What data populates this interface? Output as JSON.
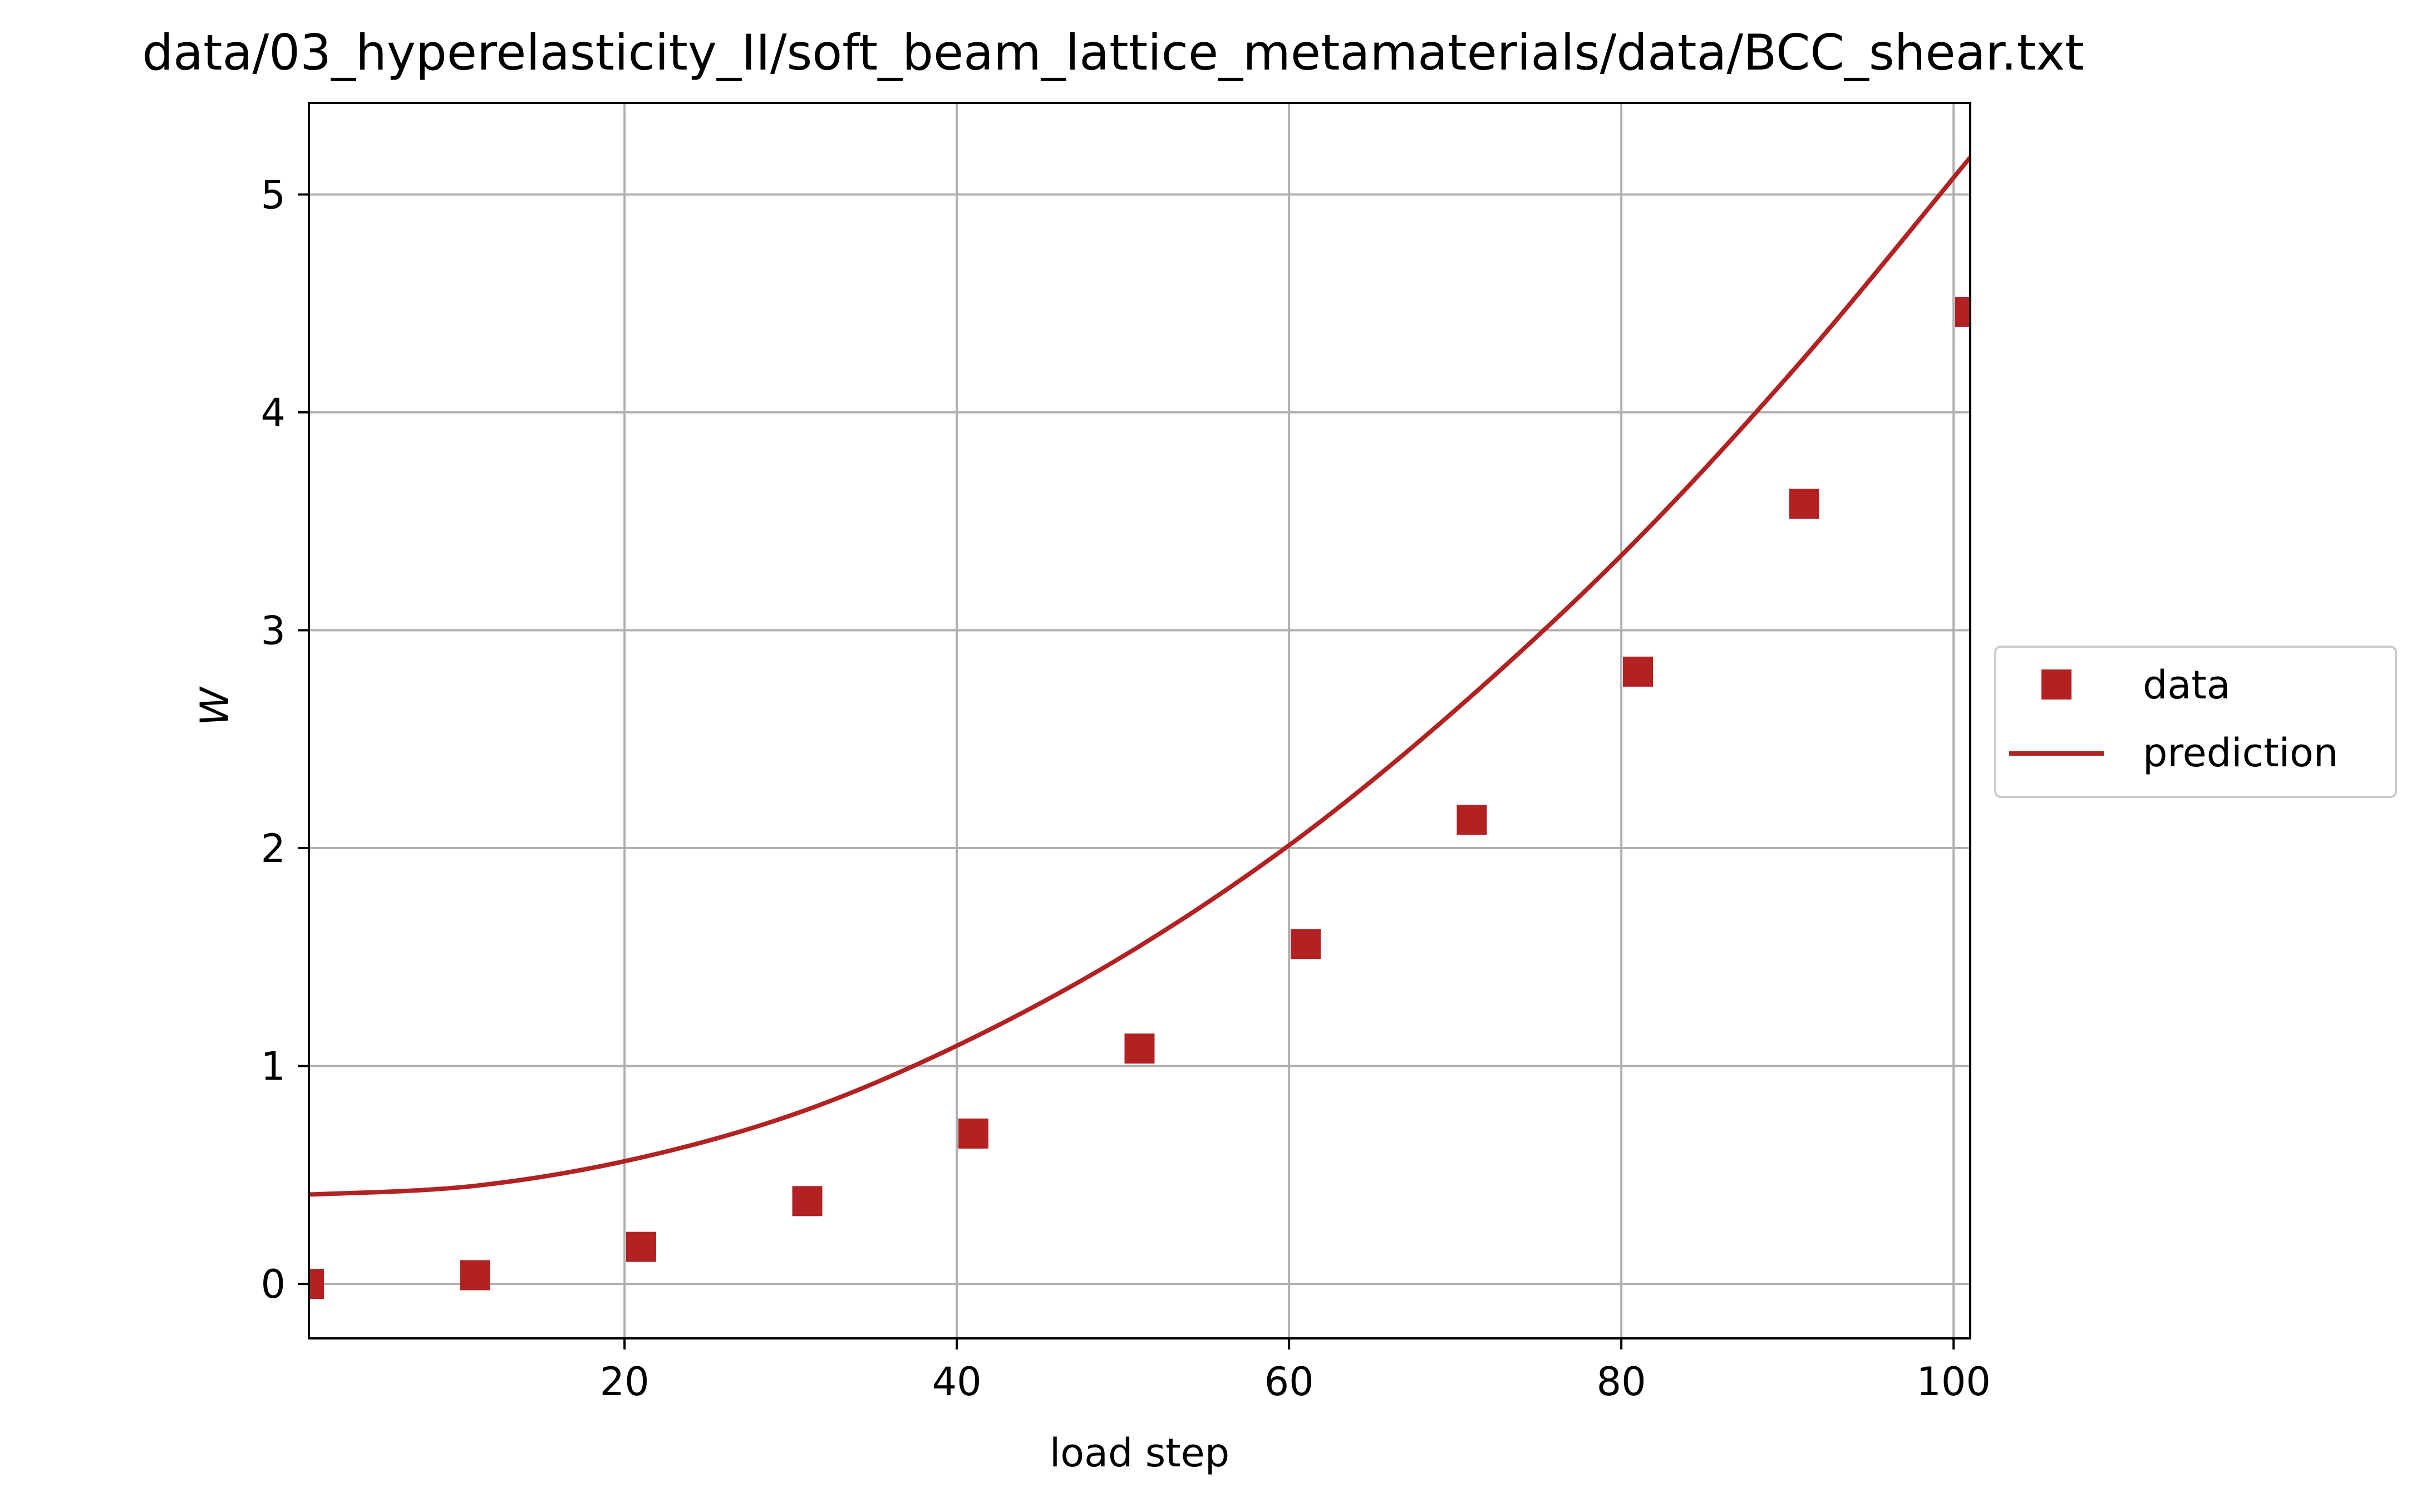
{
  "chart_data": {
    "type": "scatter",
    "title": "data/03_hyperelasticity_II/soft_beam_lattice_metamaterials/data/BCC_shear.txt",
    "xlabel": "load step",
    "ylabel": "W",
    "xlim": [
      1,
      101
    ],
    "ylim": [
      -0.25,
      5.42
    ],
    "xticks": [
      20,
      40,
      60,
      80,
      100
    ],
    "yticks": [
      0,
      1,
      2,
      3,
      4,
      5
    ],
    "grid": true,
    "legend_position": "center-right, outside plot area",
    "series": [
      {
        "name": "data",
        "kind": "markers",
        "marker": "square",
        "color": "#b22222",
        "x": [
          1,
          11,
          21,
          31,
          41,
          51,
          61,
          71,
          81,
          91,
          101
        ],
        "y": [
          0.0,
          0.04,
          0.17,
          0.38,
          0.69,
          1.08,
          1.56,
          2.13,
          2.81,
          3.58,
          4.46
        ]
      },
      {
        "name": "prediction",
        "kind": "line",
        "color": "#b22222",
        "x": [
          1,
          11,
          21,
          31,
          41,
          51,
          61,
          71,
          81,
          91,
          101
        ],
        "y": [
          0.41,
          0.45,
          0.58,
          0.8,
          1.13,
          1.55,
          2.07,
          2.7,
          3.42,
          4.25,
          5.17
        ]
      }
    ]
  }
}
